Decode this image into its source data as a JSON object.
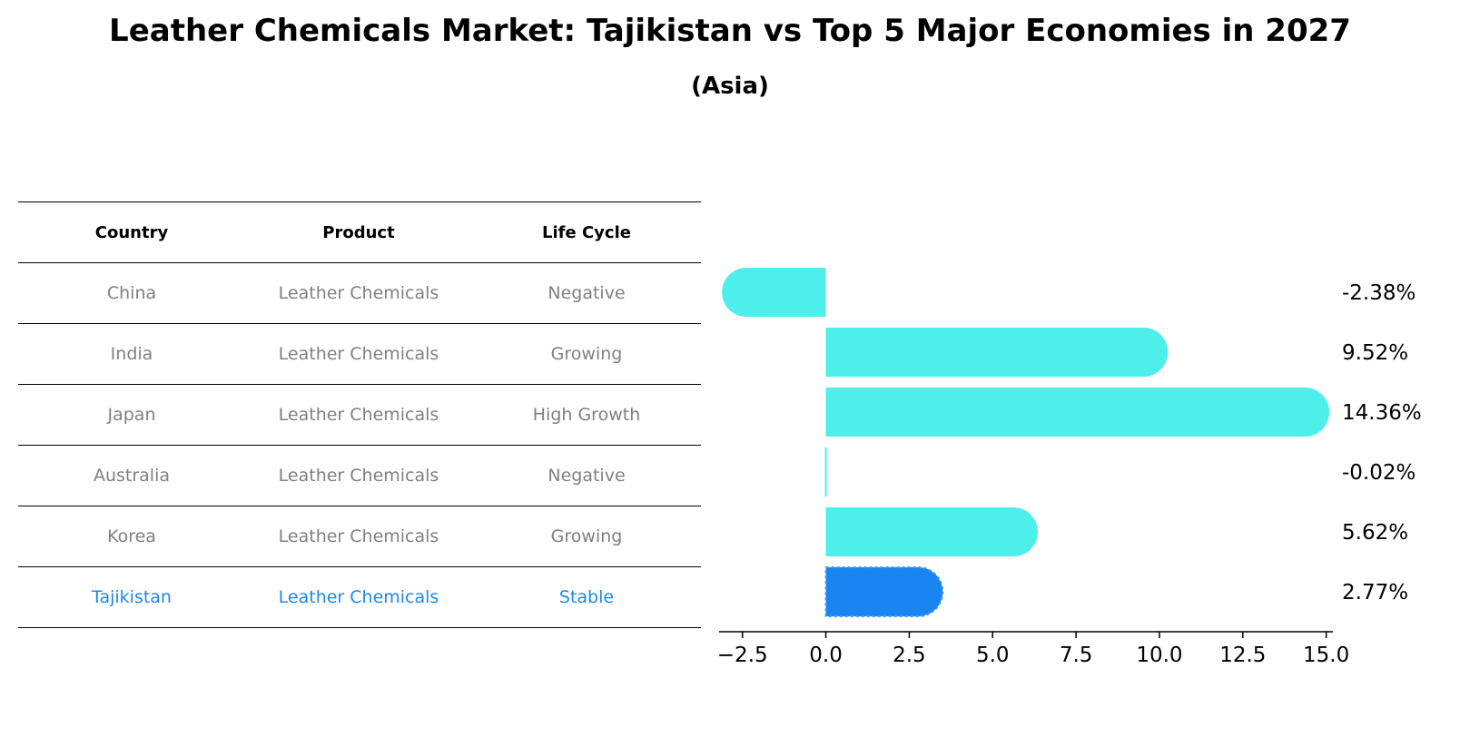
{
  "title": "Leather Chemicals Market: Tajikistan vs Top 5 Major Economies in 2027",
  "subtitle": "(Asia)",
  "table": {
    "headers": [
      "Country",
      "Product",
      "Life Cycle"
    ],
    "rows": [
      [
        "China",
        "Leather Chemicals",
        "Negative"
      ],
      [
        "India",
        "Leather Chemicals",
        "Growing"
      ],
      [
        "Japan",
        "Leather Chemicals",
        "High Growth"
      ],
      [
        "Australia",
        "Leather Chemicals",
        "Negative"
      ],
      [
        "Korea",
        "Leather Chemicals",
        "Growing"
      ],
      [
        "Tajikistan",
        "Leather Chemicals",
        "Stable"
      ]
    ]
  },
  "chart_data": {
    "type": "bar",
    "orientation": "horizontal",
    "categories": [
      "China",
      "India",
      "Japan",
      "Australia",
      "Korea",
      "Tajikistan"
    ],
    "values": [
      -2.38,
      9.52,
      14.36,
      -0.02,
      5.62,
      2.77
    ],
    "value_labels": [
      "-2.38%",
      "9.52%",
      "14.36%",
      "-0.02%",
      "5.62%",
      "2.77%"
    ],
    "xlim": [
      -3.2,
      15.2
    ],
    "xticks": [
      -2.5,
      0.0,
      2.5,
      5.0,
      7.5,
      10.0,
      12.5,
      15.0
    ],
    "xtick_labels": [
      "−2.5",
      "0.0",
      "2.5",
      "5.0",
      "7.5",
      "10.0",
      "12.5",
      "15.0"
    ],
    "colors": {
      "default": "#4eeeea",
      "highlight": "#1a85f0"
    },
    "highlight": "Tajikistan"
  }
}
